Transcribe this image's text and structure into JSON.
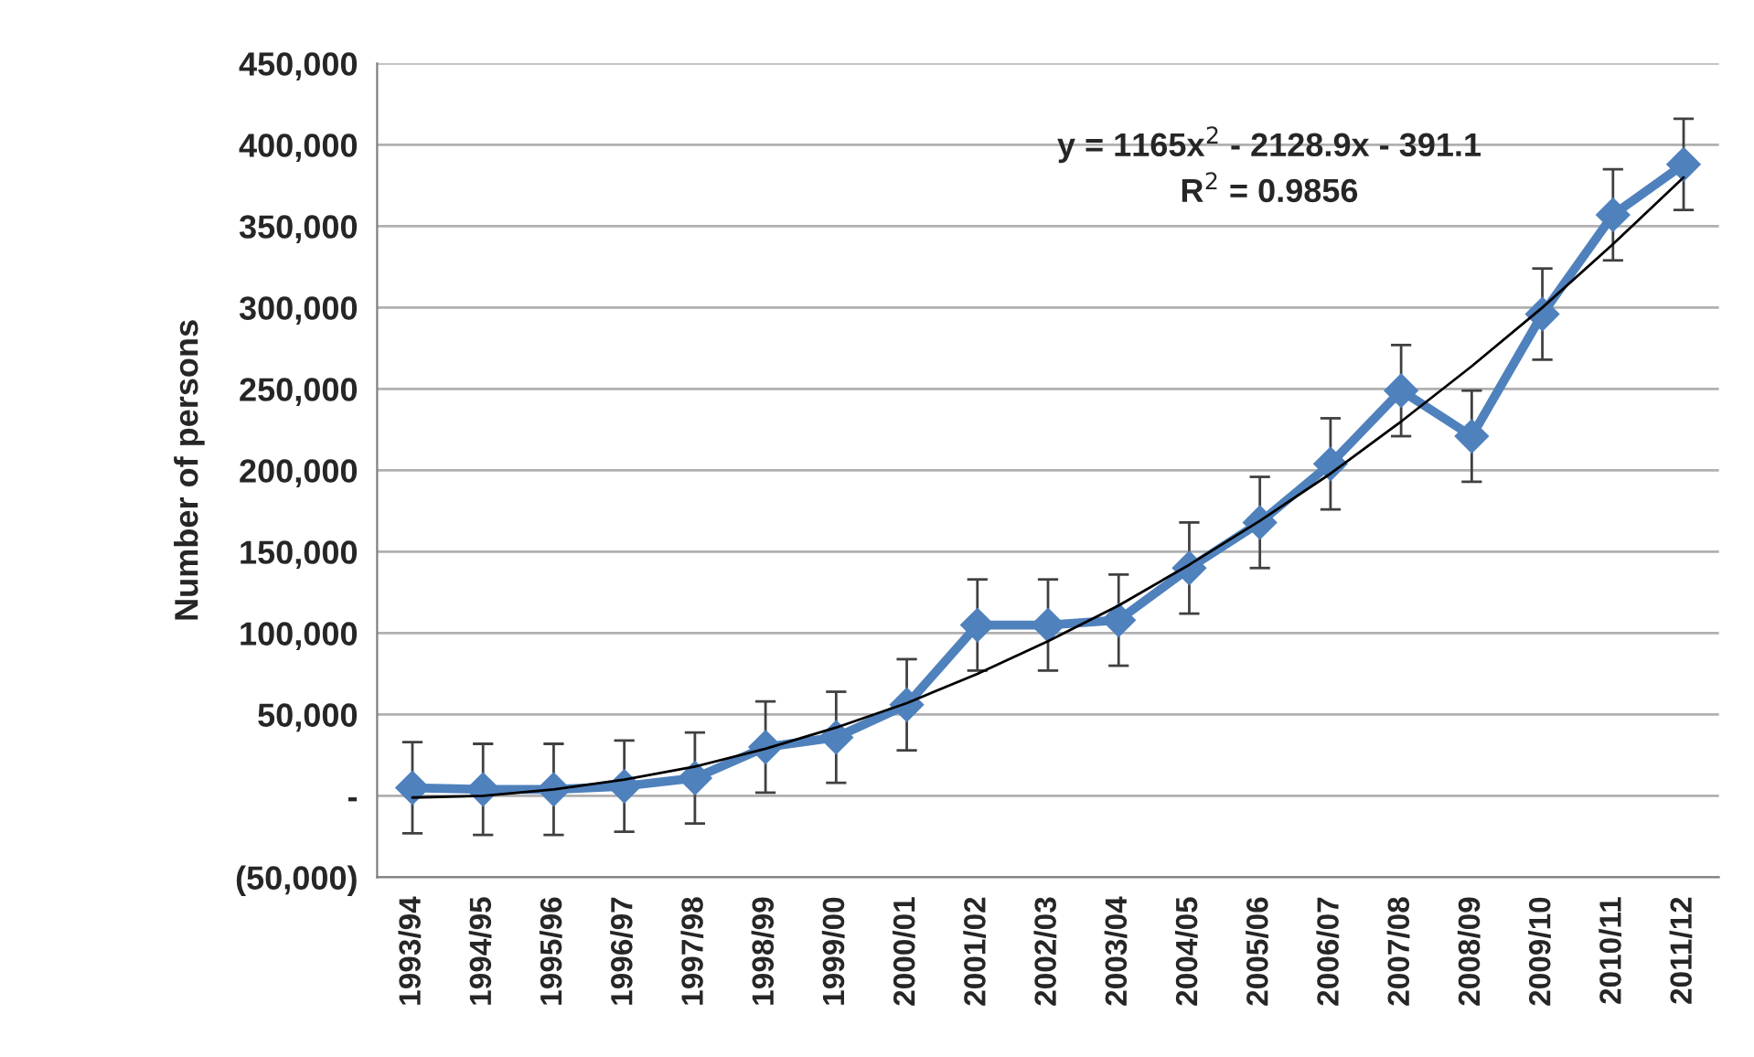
{
  "chart_data": {
    "type": "line",
    "ylabel": "Number of persons",
    "categories": [
      "1993/94",
      "1994/95",
      "1995/96",
      "1996/97",
      "1997/98",
      "1998/99",
      "1999/00",
      "2000/01",
      "2001/02",
      "2002/03",
      "2003/04",
      "2004/05",
      "2005/06",
      "2006/07",
      "2007/08",
      "2008/09",
      "2009/10",
      "2010/11",
      "2011/12"
    ],
    "series": [
      {
        "color": "#4f81bd",
        "marker": "diamond",
        "values": [
          5000,
          4000,
          4000,
          6000,
          11000,
          30000,
          36000,
          56000,
          105000,
          105000,
          108000,
          140000,
          168000,
          204000,
          249000,
          221000,
          296000,
          357000,
          388000
        ],
        "errors": [
          28000,
          28000,
          28000,
          28000,
          28000,
          28000,
          28000,
          28000,
          28000,
          28000,
          28000,
          28000,
          28000,
          28000,
          28000,
          28000,
          28000,
          28000,
          28000
        ]
      },
      {
        "type": "line",
        "color": "#000000",
        "marker": "none",
        "x": [
          "1993/94",
          "1994/95",
          "1995/96",
          "1996/97",
          "1997/98",
          "1998/99",
          "1999/00",
          "2000/01",
          "2001/02",
          "2002/03",
          "2003/04",
          "2004/05",
          "2005/06",
          "2006/07",
          "2007/08",
          "2008/09",
          "2009/10",
          "2010/11",
          "2011/12"
        ],
        "values": [
          -1000,
          0,
          4000,
          10000,
          18000,
          29000,
          42000,
          57000,
          75000,
          95000,
          117000,
          142000,
          169000,
          198000,
          230000,
          264000,
          300000,
          339000,
          380000
        ]
      }
    ],
    "ylim": [
      -50000,
      450000
    ],
    "yticks": [
      {
        "value": -50000,
        "label": "(50,000)"
      },
      {
        "value": 0,
        "label": "-"
      },
      {
        "value": 50000,
        "label": "50,000"
      },
      {
        "value": 100000,
        "label": "100,000"
      },
      {
        "value": 150000,
        "label": "150,000"
      },
      {
        "value": 200000,
        "label": "200,000"
      },
      {
        "value": 250000,
        "label": "250,000"
      },
      {
        "value": 300000,
        "label": "300,000"
      },
      {
        "value": 350000,
        "label": "350,000"
      },
      {
        "value": 400000,
        "label": "400,000"
      },
      {
        "value": 450000,
        "label": "450,000"
      }
    ],
    "grid": "y",
    "annotations": [
      "y = 1165x$^{2}$ - 2128.9x - 391.1",
      "R$^{2}$ = 0.9856"
    ]
  }
}
